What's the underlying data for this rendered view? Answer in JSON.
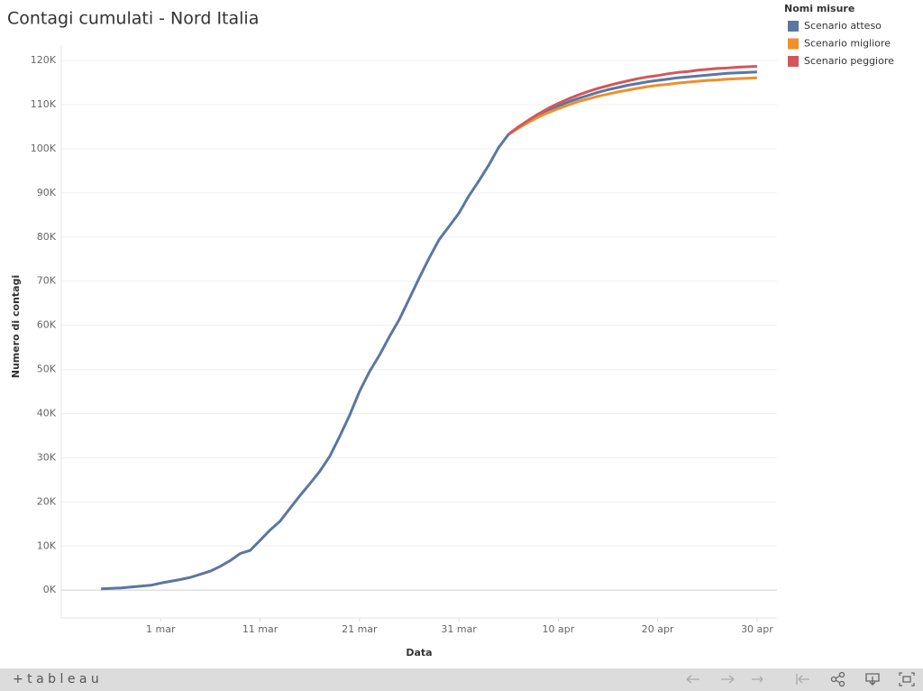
{
  "chart_data": {
    "type": "line",
    "title": "Contagi cumulati - Nord Italia",
    "x_label": "Data",
    "y_label": "Numero di contagi",
    "legend_title": "Nomi misure",
    "legend": "top-right",
    "grid": true,
    "x": [
      "02-24",
      "02-25",
      "02-26",
      "02-27",
      "02-28",
      "02-29",
      "03-01",
      "03-02",
      "03-03",
      "03-04",
      "03-05",
      "03-06",
      "03-07",
      "03-08",
      "03-09",
      "03-10",
      "03-11",
      "03-12",
      "03-13",
      "03-14",
      "03-15",
      "03-16",
      "03-17",
      "03-18",
      "03-19",
      "03-20",
      "03-21",
      "03-22",
      "03-23",
      "03-24",
      "03-25",
      "03-26",
      "03-27",
      "03-28",
      "03-29",
      "03-30",
      "03-31",
      "04-01",
      "04-02",
      "04-03",
      "04-04",
      "04-05",
      "04-06",
      "04-07",
      "04-08",
      "04-09",
      "04-10",
      "04-11",
      "04-12",
      "04-13",
      "04-14",
      "04-15",
      "04-16",
      "04-17",
      "04-18",
      "04-19",
      "04-20",
      "04-21",
      "04-22",
      "04-23",
      "04-24",
      "04-25",
      "04-26",
      "04-27",
      "04-28",
      "04-29",
      "04-30"
    ],
    "xlim": [
      "02-20",
      "05-02"
    ],
    "xticks": [
      {
        "value": "03-01",
        "label": "1 mar"
      },
      {
        "value": "03-11",
        "label": "11 mar"
      },
      {
        "value": "03-21",
        "label": "21 mar"
      },
      {
        "value": "03-31",
        "label": "31 mar"
      },
      {
        "value": "04-10",
        "label": "10 apr"
      },
      {
        "value": "04-20",
        "label": "20 apr"
      },
      {
        "value": "04-30",
        "label": "30 apr"
      }
    ],
    "ylim": [
      -6300,
      123500
    ],
    "yticks": [
      {
        "value": 0,
        "label": "0K"
      },
      {
        "value": 10000,
        "label": "10K"
      },
      {
        "value": 20000,
        "label": "20K"
      },
      {
        "value": 30000,
        "label": "30K"
      },
      {
        "value": 40000,
        "label": "40K"
      },
      {
        "value": 50000,
        "label": "50K"
      },
      {
        "value": 60000,
        "label": "60K"
      },
      {
        "value": 70000,
        "label": "70K"
      },
      {
        "value": 80000,
        "label": "80K"
      },
      {
        "value": 90000,
        "label": "90K"
      },
      {
        "value": 100000,
        "label": "100K"
      },
      {
        "value": 110000,
        "label": "110K"
      },
      {
        "value": 120000,
        "label": "120K"
      }
    ],
    "series": [
      {
        "name": "Scenario atteso",
        "color": "#5b77a0",
        "values": [
          300,
          400,
          500,
          700,
          900,
          1100,
          1600,
          2000,
          2400,
          2900,
          3600,
          4300,
          5400,
          6700,
          8300,
          9000,
          11300,
          13600,
          15600,
          18500,
          21400,
          24100,
          26900,
          30300,
          34800,
          39600,
          45000,
          49500,
          53200,
          57400,
          61300,
          66000,
          70700,
          75200,
          79400,
          82400,
          85400,
          89300,
          92700,
          96300,
          100300,
          103300,
          104900,
          106300,
          107500,
          108700,
          109700,
          110600,
          111400,
          112100,
          112800,
          113400,
          113900,
          114400,
          114800,
          115200,
          115500,
          115800,
          116100,
          116300,
          116500,
          116700,
          116900,
          117100,
          117200,
          117300,
          117400
        ]
      },
      {
        "name": "Scenario migliore",
        "color": "#f28e2b",
        "values": [
          null,
          null,
          null,
          null,
          null,
          null,
          null,
          null,
          null,
          null,
          null,
          null,
          null,
          null,
          null,
          null,
          null,
          null,
          null,
          null,
          null,
          null,
          null,
          null,
          null,
          null,
          null,
          null,
          null,
          null,
          null,
          null,
          null,
          null,
          null,
          null,
          null,
          null,
          null,
          null,
          null,
          103300,
          104700,
          106000,
          107200,
          108200,
          109100,
          109900,
          110700,
          111300,
          111900,
          112400,
          112900,
          113300,
          113700,
          114100,
          114400,
          114600,
          114900,
          115100,
          115300,
          115500,
          115600,
          115800,
          115900,
          116000,
          116100
        ]
      },
      {
        "name": "Scenario peggiore",
        "color": "#d1575c",
        "values": [
          null,
          null,
          null,
          null,
          null,
          null,
          null,
          null,
          null,
          null,
          null,
          null,
          null,
          null,
          null,
          null,
          null,
          null,
          null,
          null,
          null,
          null,
          null,
          null,
          null,
          null,
          null,
          null,
          null,
          null,
          null,
          null,
          null,
          null,
          null,
          null,
          null,
          null,
          null,
          null,
          null,
          103300,
          105000,
          106500,
          107900,
          109200,
          110300,
          111300,
          112200,
          113000,
          113700,
          114300,
          114900,
          115400,
          115900,
          116300,
          116600,
          117000,
          117300,
          117500,
          117800,
          118000,
          118200,
          118300,
          118500,
          118600,
          118700
        ]
      }
    ]
  },
  "footer": {
    "brand": "+ t a b l e a u"
  }
}
